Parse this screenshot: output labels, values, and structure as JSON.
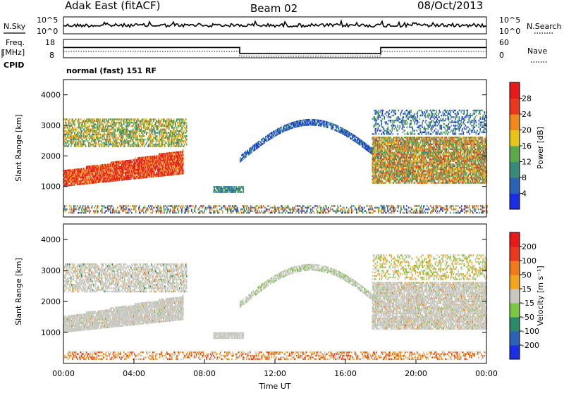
{
  "header": {
    "station": "Adak East (fitACF)",
    "beam": "Beam 02",
    "date": "08/Oct/2013"
  },
  "noise_panel": {
    "left_label": "N.Sky",
    "right_label": "N.Search",
    "y_ticks": [
      "10^5",
      "10^0"
    ],
    "right_ticks": [
      "10^5",
      "10^0"
    ]
  },
  "freq_panel": {
    "left_label_1": "Freq.",
    "left_label_2": "[MHz]",
    "left_label_3": "CPID",
    "right_label": "Nave",
    "y_ticks": [
      "18",
      "8"
    ],
    "right_ticks": [
      "60",
      "0"
    ],
    "cpid_text": "normal (fast) 151 RF"
  },
  "chart_data": [
    {
      "type": "line",
      "title": "",
      "series": [
        {
          "name": "N.Sky",
          "style": "solid"
        },
        {
          "name": "N.Search",
          "style": "dotted"
        }
      ],
      "x": [
        "00:00",
        "24:00"
      ],
      "ylim_label": [
        "10^0",
        "10^5"
      ]
    },
    {
      "type": "line",
      "series": [
        {
          "name": "Freq.",
          "style": "solid",
          "points": [
            [
              0,
              13.6
            ],
            [
              10,
              13.6
            ],
            [
              10,
              10.4
            ],
            [
              18,
              10.4
            ],
            [
              18,
              13.6
            ],
            [
              24,
              13.6
            ]
          ]
        },
        {
          "name": "Nave",
          "style": "dotted",
          "points": [
            [
              0,
              21
            ],
            [
              10,
              21
            ],
            [
              10,
              5
            ],
            [
              18,
              5
            ],
            [
              18,
              21
            ],
            [
              24,
              21
            ]
          ]
        }
      ],
      "ylim": [
        8,
        18
      ],
      "right_ylim": [
        0,
        60
      ]
    },
    {
      "type": "heatmap",
      "ylabel": "Slant Range [km]",
      "y_ticks": [
        "1000",
        "2000",
        "3000",
        "4000"
      ],
      "ylim": [
        0,
        4500
      ],
      "colorbar_label": "Power [dB]",
      "colorbar_ticks": [
        "4",
        "8",
        "12",
        "16",
        "20",
        "24",
        "28"
      ],
      "colorbar_colors": [
        "#1a2ee6",
        "#2a62b8",
        "#3a8a7a",
        "#5aaa4a",
        "#e8c41a",
        "#f0891c",
        "#e8381e",
        "#e61a1a"
      ]
    },
    {
      "type": "heatmap",
      "xlabel": "Time UT",
      "ylabel": "Slant Range [km]",
      "x_ticks": [
        "00:00",
        "04:00",
        "08:00",
        "12:00",
        "16:00",
        "20:00",
        "00:00"
      ],
      "y_ticks": [
        "1000",
        "2000",
        "3000",
        "4000"
      ],
      "ylim": [
        0,
        4500
      ],
      "colorbar_label": "Velocity [m s⁻¹]",
      "colorbar_ticks": [
        "200",
        "100",
        "50",
        "15",
        "-15",
        "-50",
        "-100",
        "-200"
      ],
      "colorbar_colors": [
        "#1a2ee6",
        "#2a62b8",
        "#2a8a6a",
        "#7ac843",
        "#c8c8c0",
        "#f3a41c",
        "#f07a1c",
        "#e8381e",
        "#e61a1a"
      ]
    }
  ]
}
